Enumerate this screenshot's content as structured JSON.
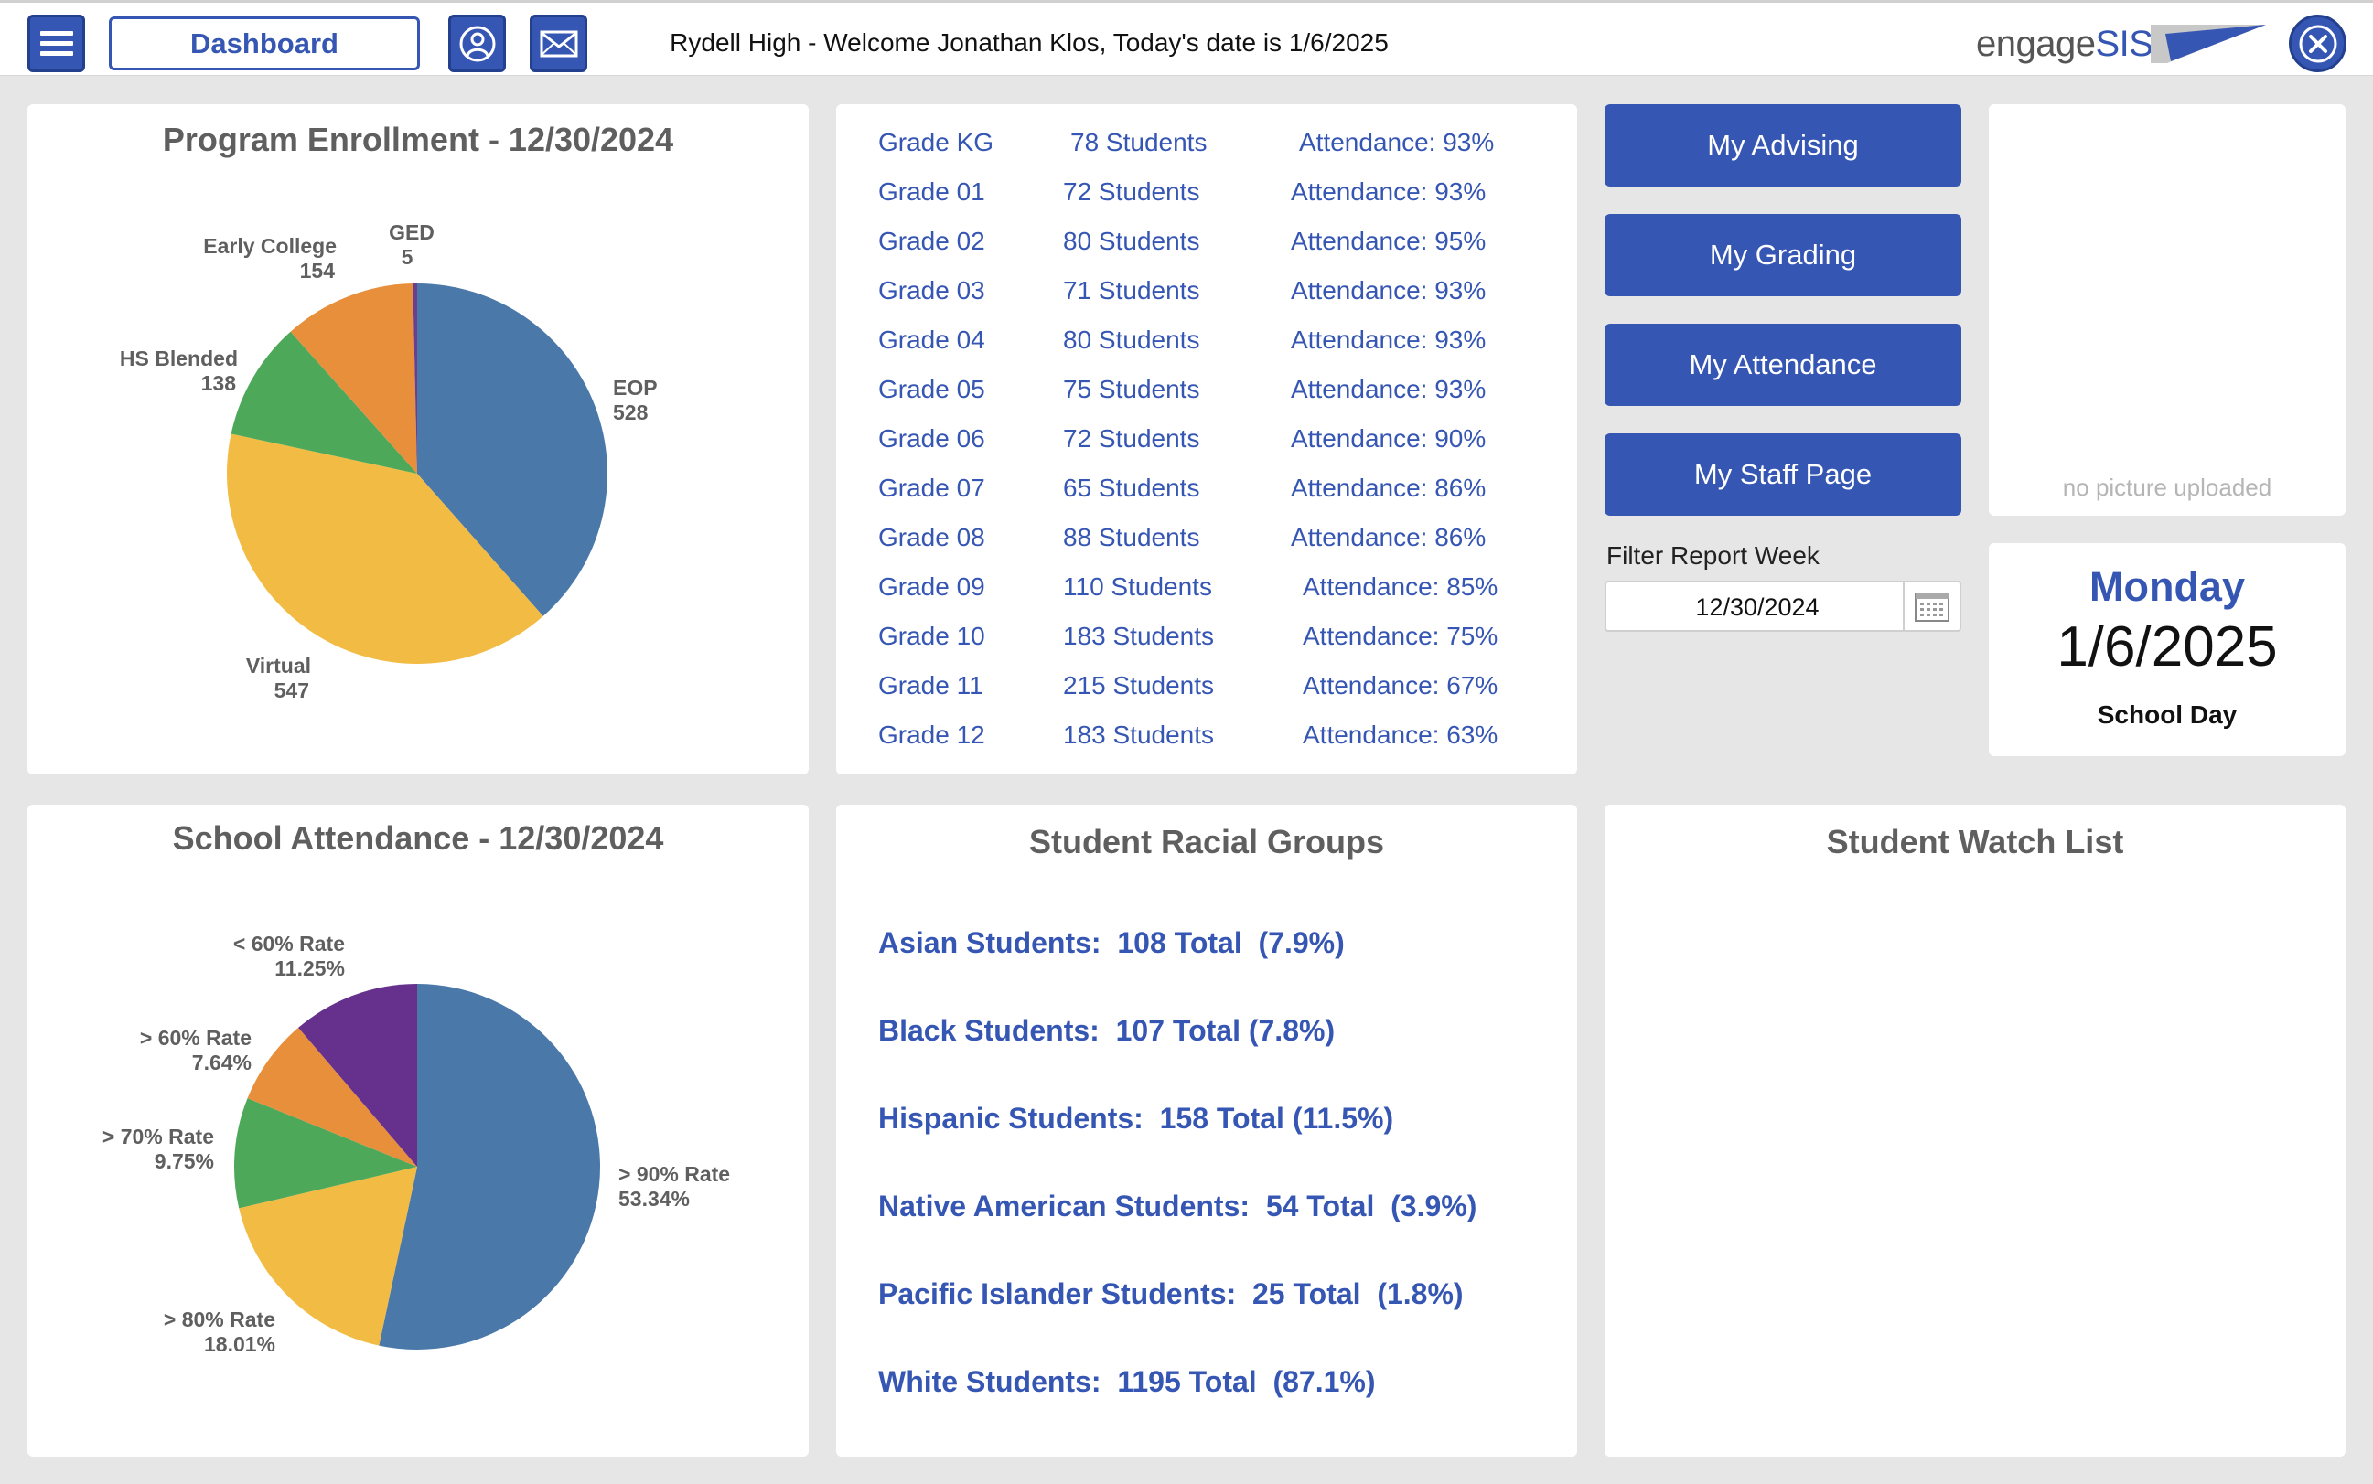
{
  "header": {
    "dashboard_label": "Dashboard",
    "welcome_text": "Rydell High - Welcome Jonathan Klos, Today's date is 1/6/2025",
    "logo_engage": "engage",
    "logo_sis": "SIS",
    "menu_icon": "hamburger-icon",
    "profile_icon": "user-icon",
    "mail_icon": "mail-icon",
    "close_icon": "close-icon"
  },
  "program_enrollment": {
    "title": "Program Enrollment - 12/30/2024"
  },
  "school_attendance": {
    "title": "School Attendance - 12/30/2024"
  },
  "chart_data": [
    {
      "type": "pie",
      "title": "Program Enrollment - 12/30/2024",
      "categories": [
        "EOP",
        "Virtual",
        "HS Blended",
        "Early College",
        "GED"
      ],
      "values": [
        528,
        547,
        138,
        154,
        5
      ],
      "value_labels": [
        "528",
        "547",
        "138",
        "154",
        "5"
      ],
      "colors": [
        "#4a78a8",
        "#f2bb43",
        "#4ea85a",
        "#e88f3c",
        "#6b3f8f"
      ]
    },
    {
      "type": "pie",
      "title": "School Attendance - 12/30/2024",
      "categories": [
        "> 90% Rate",
        "> 80% Rate",
        "> 70% Rate",
        "> 60% Rate",
        "< 60% Rate"
      ],
      "values": [
        53.34,
        18.01,
        9.75,
        7.64,
        11.25
      ],
      "value_labels": [
        "53.34%",
        "18.01%",
        "9.75%",
        "7.64%",
        "11.25%"
      ],
      "colors": [
        "#4a78a8",
        "#f2bb43",
        "#4ea85a",
        "#e88f3c",
        "#66318c"
      ]
    }
  ],
  "grades": [
    {
      "grade": "Grade KG",
      "students": "78 Students",
      "attendance": "Attendance: 93%"
    },
    {
      "grade": "Grade 01",
      "students": "72 Students",
      "attendance": "Attendance: 93%"
    },
    {
      "grade": "Grade 02",
      "students": "80 Students",
      "attendance": "Attendance: 95%"
    },
    {
      "grade": "Grade 03",
      "students": "71 Students",
      "attendance": "Attendance: 93%"
    },
    {
      "grade": "Grade 04",
      "students": "80 Students",
      "attendance": "Attendance: 93%"
    },
    {
      "grade": "Grade 05",
      "students": "75 Students",
      "attendance": "Attendance: 93%"
    },
    {
      "grade": "Grade 06",
      "students": "72 Students",
      "attendance": "Attendance: 90%"
    },
    {
      "grade": "Grade 07",
      "students": "65 Students",
      "attendance": "Attendance: 86%"
    },
    {
      "grade": "Grade 08",
      "students": "88 Students",
      "attendance": "Attendance: 86%"
    },
    {
      "grade": "Grade 09",
      "students": "110 Students",
      "attendance": "Attendance: 85%"
    },
    {
      "grade": "Grade 10",
      "students": "183 Students",
      "attendance": "Attendance: 75%"
    },
    {
      "grade": "Grade 11",
      "students": "215 Students",
      "attendance": "Attendance: 67%"
    },
    {
      "grade": "Grade 12",
      "students": "183 Students",
      "attendance": "Attendance: 63%"
    }
  ],
  "actions": {
    "advising": "My Advising",
    "grading": "My Grading",
    "attendance": "My Attendance",
    "staff_page": "My Staff Page"
  },
  "filter": {
    "label": "Filter Report Week",
    "value": "12/30/2024",
    "calendar_icon": "calendar-icon"
  },
  "picture": {
    "placeholder": "no picture uploaded"
  },
  "today": {
    "weekday": "Monday",
    "date": "1/6/2025",
    "status": "School Day"
  },
  "racial_groups": {
    "title": "Student Racial Groups",
    "rows": [
      "Asian Students:  108 Total  (7.9%)",
      "Black Students:  107 Total (7.8%)",
      "Hispanic Students:  158 Total (11.5%)",
      "Native American Students:  54 Total  (3.9%)",
      "Pacific Islander Students:  25 Total  (1.8%)",
      "White Students:  1195 Total  (87.1%)"
    ]
  },
  "watch_list": {
    "title": "Student Watch List"
  },
  "colors": {
    "primary": "#3656b3",
    "background": "#e6e6e6",
    "title_gray": "#5f5f5f"
  }
}
